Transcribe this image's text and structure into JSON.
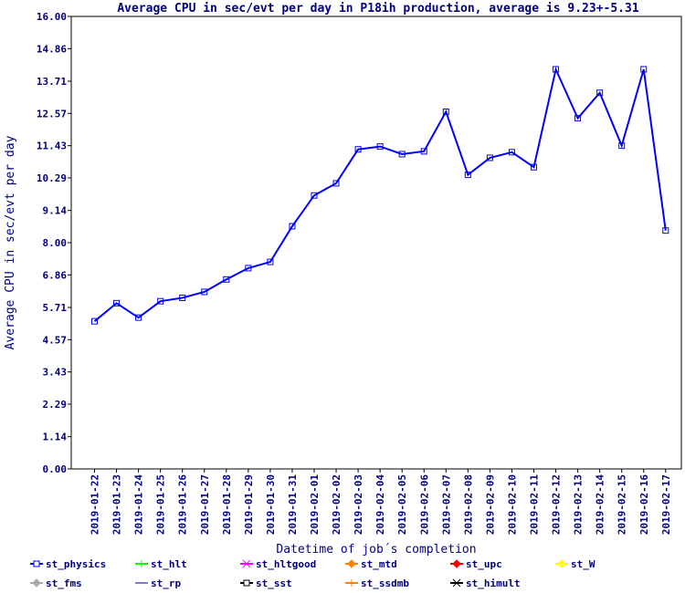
{
  "chart_data": {
    "type": "line",
    "title": "Average CPU in sec/evt per day in P18ih production, average is 9.23+-5.31",
    "xlabel": "Datetime of job´s completion",
    "ylabel": "Average CPU in sec/evt per day",
    "ylim": [
      0,
      16
    ],
    "y_ticks": [
      "0.00",
      "1.14",
      "2.29",
      "3.43",
      "4.57",
      "5.71",
      "6.86",
      "8.00",
      "9.14",
      "10.29",
      "11.43",
      "12.57",
      "13.71",
      "14.86",
      "16.00"
    ],
    "categories": [
      "2019-01-22",
      "2019-01-23",
      "2019-01-24",
      "2019-01-25",
      "2019-01-26",
      "2019-01-27",
      "2019-01-28",
      "2019-01-29",
      "2019-01-30",
      "2019-01-31",
      "2019-02-01",
      "2019-02-02",
      "2019-02-03",
      "2019-02-04",
      "2019-02-05",
      "2019-02-06",
      "2019-02-07",
      "2019-02-08",
      "2019-02-09",
      "2019-02-10",
      "2019-02-11",
      "2019-02-12",
      "2019-02-13",
      "2019-02-14",
      "2019-02-15",
      "2019-02-16",
      "2019-02-17"
    ],
    "series": [
      {
        "name": "st_physics",
        "color": "#0000ff",
        "values": [
          5.22,
          5.86,
          5.35,
          5.93,
          6.05,
          6.26,
          6.7,
          7.1,
          7.32,
          8.58,
          9.67,
          10.1,
          11.3,
          11.4,
          11.13,
          11.23,
          12.63,
          10.4,
          11.0,
          11.2,
          10.67,
          14.13,
          12.4,
          13.3,
          11.43,
          14.13,
          8.43
        ]
      }
    ],
    "legend": {
      "placement": "bottom",
      "entries": [
        {
          "name": "st_physics",
          "color": "#0000ff",
          "marker": "square"
        },
        {
          "name": "st_hlt",
          "color": "#00ff00",
          "marker": "plus"
        },
        {
          "name": "st_hltgood",
          "color": "#ff00ff",
          "marker": "cross"
        },
        {
          "name": "st_mtd",
          "color": "#ff8000",
          "marker": "diamond"
        },
        {
          "name": "st_upc",
          "color": "#ff0000",
          "marker": "diamond"
        },
        {
          "name": "st_W",
          "color": "#ffff00",
          "marker": "diamond"
        },
        {
          "name": "st_fms",
          "color": "#aaaaaa",
          "marker": "diamond"
        },
        {
          "name": "st_rp",
          "color": "#8080c0",
          "marker": "line"
        },
        {
          "name": "st_sst",
          "color": "#000000",
          "marker": "square"
        },
        {
          "name": "st_ssdmb",
          "color": "#ff8000",
          "marker": "plus"
        },
        {
          "name": "st_himult",
          "color": "#000000",
          "marker": "cross"
        }
      ]
    },
    "grid": false
  }
}
